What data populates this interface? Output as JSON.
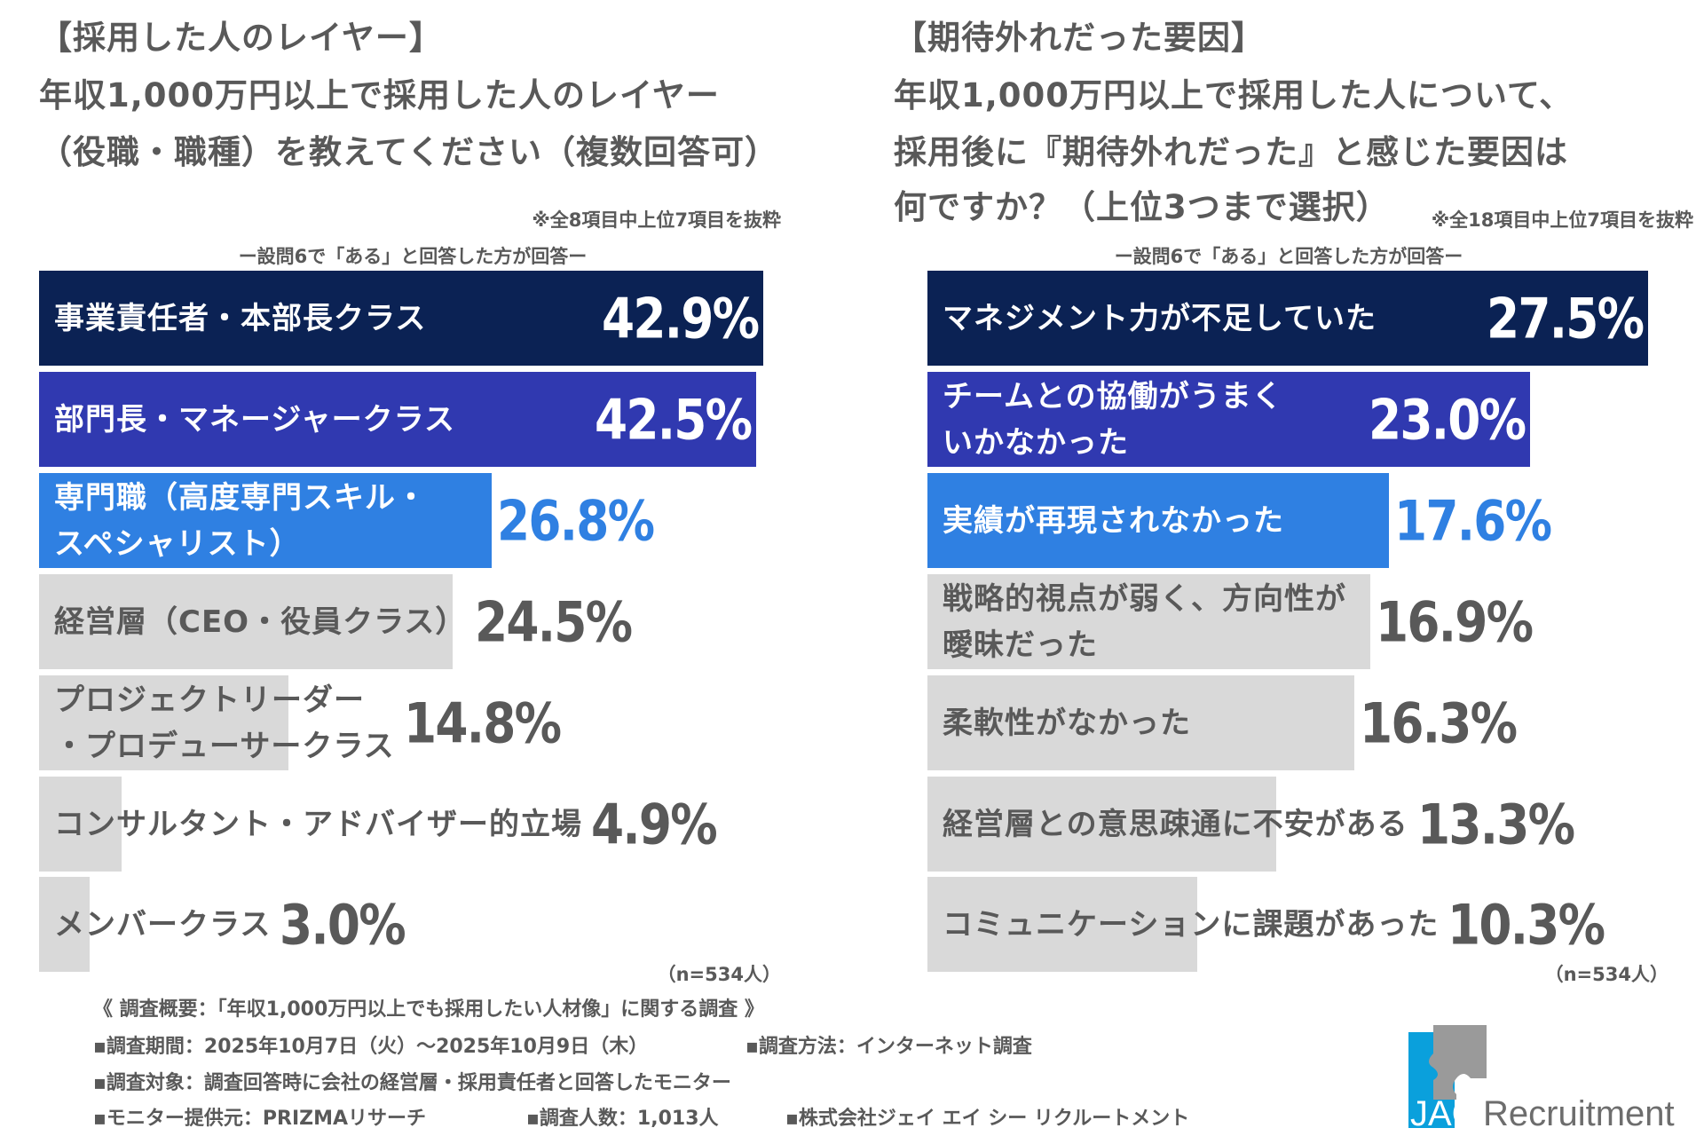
{
  "colors": {
    "navy": "#0b2254",
    "indigo": "#3039b0",
    "blue": "#2f80e2",
    "gray": "#d9d9d9",
    "text": "#595959",
    "white": "#ffffff"
  },
  "left": {
    "title_lines": [
      "【採用した人のレイヤー】",
      "年収1,000万円以上で採用した人のレイヤー",
      "（役職・職種）を教えてください（複数回答可）"
    ],
    "note": "※全8項目中上位7項目を抜粋",
    "subnote": "ー設問6で「ある」と回答した方が回答ー",
    "n": "（n=534人）"
  },
  "right": {
    "title_lines": [
      "【期待外れだった要因】",
      "年収1,000万円以上で採用した人について、",
      "採用後に『期待外れだった』と感じた要因は",
      "何ですか？（上位3つまで選択）"
    ],
    "note": "※全18項目中上位7項目を抜粋",
    "subnote": "ー設問6で「ある」と回答した方が回答ー",
    "n": "（n=534人）"
  },
  "chart_data": [
    {
      "type": "bar",
      "orientation": "horizontal",
      "categories": [
        "事業責任者・本部長クラス",
        "部門長・マネージャークラス",
        "専門職（高度専門スキル・\nスペシャリスト）",
        "経営層（CEO・役員クラス）",
        "プロジェクトリーダー\n・プロデューサークラス",
        "コンサルタント・アドバイザー的立場",
        "メンバークラス"
      ],
      "values": [
        42.9,
        42.5,
        26.8,
        24.5,
        14.8,
        4.9,
        3.0
      ],
      "labels": [
        "42.9%",
        "42.5%",
        "26.8%",
        "24.5%",
        "14.8%",
        "4.9%",
        "3.0%"
      ],
      "unit": "%"
    },
    {
      "type": "bar",
      "orientation": "horizontal",
      "categories": [
        "マネジメント力が不足していた",
        "チームとの協働がうまく\nいかなかった",
        "実績が再現されなかった",
        "戦略的視点が弱く、方向性が\n曖昧だった",
        "柔軟性がなかった",
        "経営層との意思疎通に不安がある",
        "コミュニケーションに課題があった"
      ],
      "values": [
        27.5,
        23.0,
        17.6,
        16.9,
        16.3,
        13.3,
        10.3
      ],
      "labels": [
        "27.5%",
        "23.0%",
        "17.6%",
        "16.9%",
        "16.3%",
        "13.3%",
        "10.3%"
      ],
      "unit": "%"
    }
  ],
  "footer": {
    "heading": "《 調査概要：「年収1,000万円以上でも採用したい人材像」に関する調査 》",
    "period": "▪調査期間：2025年10月7日（火）〜2025年10月9日（木）",
    "method": "▪調査方法：インターネット調査",
    "target": "▪調査対象：調査回答時に会社の経営層・採用責任者と回答したモニター",
    "provider": "▪モニター提供元：PRIZMAリサーチ",
    "count": "▪調査人数：1,013人",
    "company": "▪株式会社ジェイ エイ シー リクルートメント"
  },
  "logo": {
    "text": "JAC Recruitment",
    "icon": "puzzle-piece-logo"
  }
}
